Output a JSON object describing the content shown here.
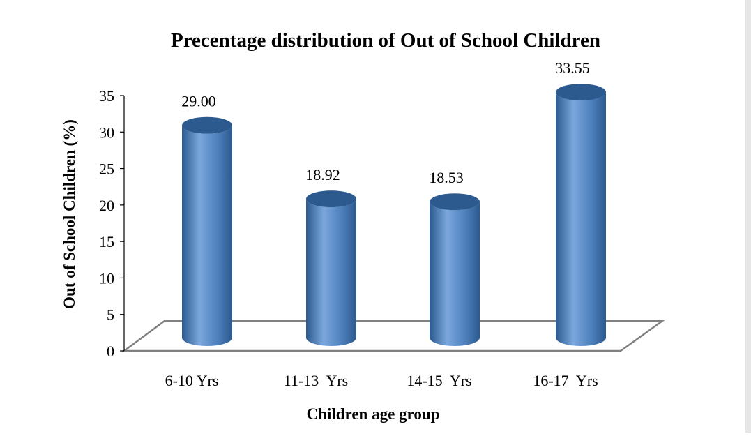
{
  "chart_data": {
    "type": "bar",
    "title": "Precentage distribution of Out of School Children",
    "xlabel": "Children age group",
    "ylabel": "Out of School Children (%)",
    "categories": [
      "6-10 Yrs",
      "11-13  Yrs",
      "14-15  Yrs",
      "16-17  Yrs"
    ],
    "values": [
      29.0,
      18.92,
      18.53,
      33.55
    ],
    "value_labels": [
      "29.00",
      "18.92",
      "18.53",
      "33.55"
    ],
    "ylim": [
      0,
      35
    ],
    "yticks": [
      "0",
      "5",
      "10",
      "15",
      "20",
      "25",
      "30",
      "35"
    ],
    "grid": false,
    "legend": "none",
    "bar_style": "3d-cylinder",
    "colors": {
      "bar": "#4f81bd",
      "bar_dark": "#2c5a8f",
      "bar_light": "#7aa6dc",
      "floor_edge": "#808080"
    }
  }
}
